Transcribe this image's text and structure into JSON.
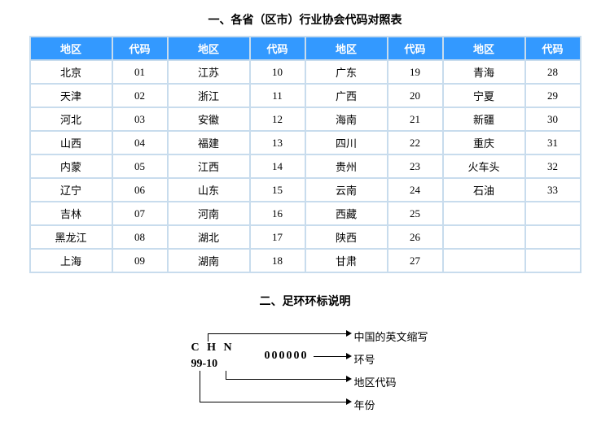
{
  "title1": "一、各省（区市）行业协会代码对照表",
  "headers": [
    "地区",
    "代码",
    "地区",
    "代码",
    "地区",
    "代码",
    "地区",
    "代码"
  ],
  "rows_count": 9,
  "rows": [
    [
      "北京",
      "01",
      "江苏",
      "10",
      "广东",
      "19",
      "青海",
      "28"
    ],
    [
      "天津",
      "02",
      "浙江",
      "11",
      "广西",
      "20",
      "宁夏",
      "29"
    ],
    [
      "河北",
      "03",
      "安徽",
      "12",
      "海南",
      "21",
      "新疆",
      "30"
    ],
    [
      "山西",
      "04",
      "福建",
      "13",
      "四川",
      "22",
      "重庆",
      "31"
    ],
    [
      "内蒙",
      "05",
      "江西",
      "14",
      "贵州",
      "23",
      "火车头",
      "32"
    ],
    [
      "辽宁",
      "06",
      "山东",
      "15",
      "云南",
      "24",
      "石油",
      "33"
    ],
    [
      "吉林",
      "07",
      "河南",
      "16",
      "西藏",
      "25",
      "",
      ""
    ],
    [
      "黑龙江",
      "08",
      "湖北",
      "17",
      "陕西",
      "26",
      "",
      ""
    ],
    [
      "上海",
      "09",
      "湖南",
      "18",
      "甘肃",
      "27",
      "",
      ""
    ]
  ],
  "colors": {
    "header_bg": "#3399ff",
    "header_fg": "#ffffff",
    "cell_bg": "#ffffff",
    "cell_fg": "#000000",
    "grid": "#c8dced",
    "page_bg": "#ffffff"
  },
  "title2": "二、足环环标说明",
  "diagram": {
    "chn_text": "C H N",
    "number_text": "000000",
    "year_region_text": "99-10",
    "label_chn": "中国的英文缩写",
    "label_number": "环号",
    "label_region_code": "地区代码",
    "label_year": "年份"
  }
}
